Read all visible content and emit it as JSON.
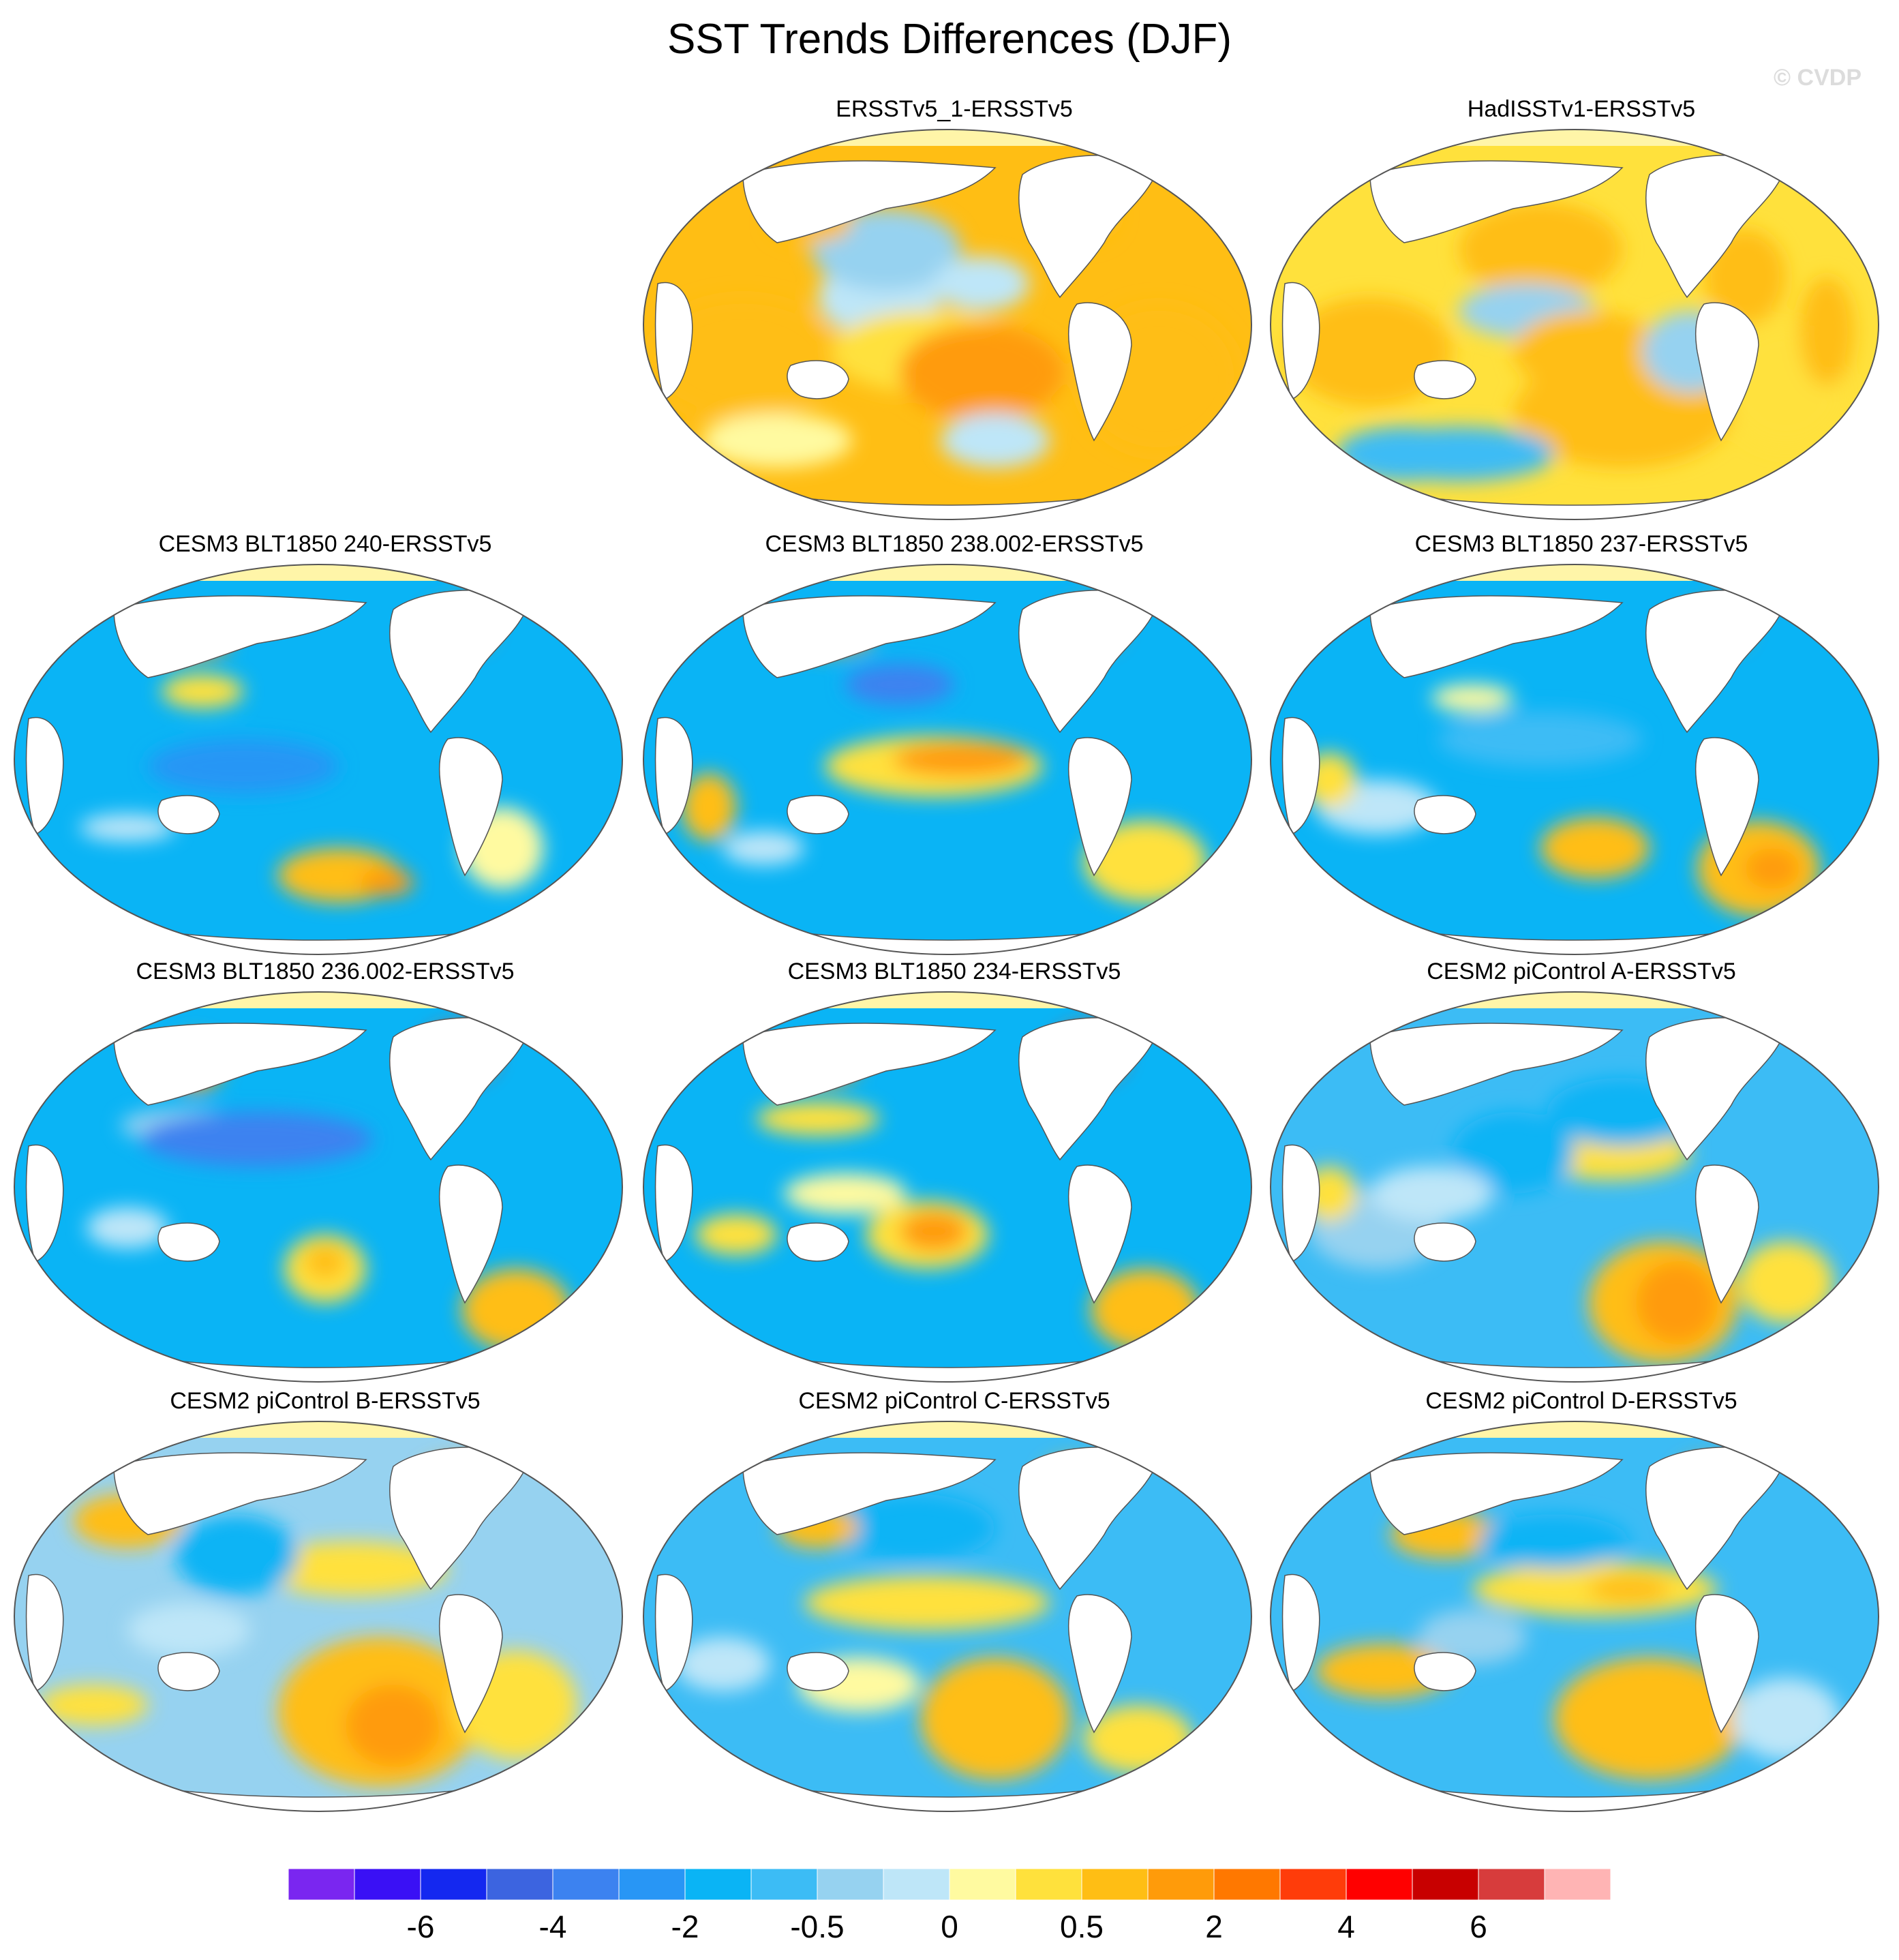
{
  "title": "SST Trends Differences (DJF)",
  "watermark": "© CVDP",
  "panels": [
    {
      "title": "ERSSTv5_1-ERSSTv5",
      "pattern": "warm"
    },
    {
      "title": "HadISSTv1-ERSSTv5",
      "pattern": "mixedwarm"
    },
    {
      "title": "CESM3 BLT1850 240-ERSSTv5",
      "pattern": "coldA"
    },
    {
      "title": "CESM3 BLT1850 238.002-ERSSTv5",
      "pattern": "coldB"
    },
    {
      "title": "CESM3 BLT1850 237-ERSSTv5",
      "pattern": "coldC"
    },
    {
      "title": "CESM3 BLT1850 236.002-ERSSTv5",
      "pattern": "coldD"
    },
    {
      "title": "CESM3 BLT1850 234-ERSSTv5",
      "pattern": "coldE"
    },
    {
      "title": "CESM2 piControl A-ERSSTv5",
      "pattern": "mixA"
    },
    {
      "title": "CESM2 piControl B-ERSSTv5",
      "pattern": "mixB"
    },
    {
      "title": "CESM2 piControl C-ERSSTv5",
      "pattern": "mixC"
    },
    {
      "title": "CESM2 piControl D-ERSSTv5",
      "pattern": "mixD"
    }
  ],
  "colorbar": {
    "colors": [
      "#7a26f0",
      "#3a10f5",
      "#1428f0",
      "#3c64e0",
      "#3c82f0",
      "#2896f5",
      "#0ab4f5",
      "#3cbcf5",
      "#96d2f0",
      "#bee6f8",
      "#fffaa0",
      "#ffe13c",
      "#ffbe14",
      "#ff9b0a",
      "#ff7800",
      "#ff3c0a",
      "#ff0000",
      "#c80000",
      "#d73c3c",
      "#ffb4b4"
    ],
    "labels": [
      "-6",
      "-4",
      "-2",
      "-0.5",
      "0",
      "0.5",
      "2",
      "4",
      "6"
    ]
  }
}
